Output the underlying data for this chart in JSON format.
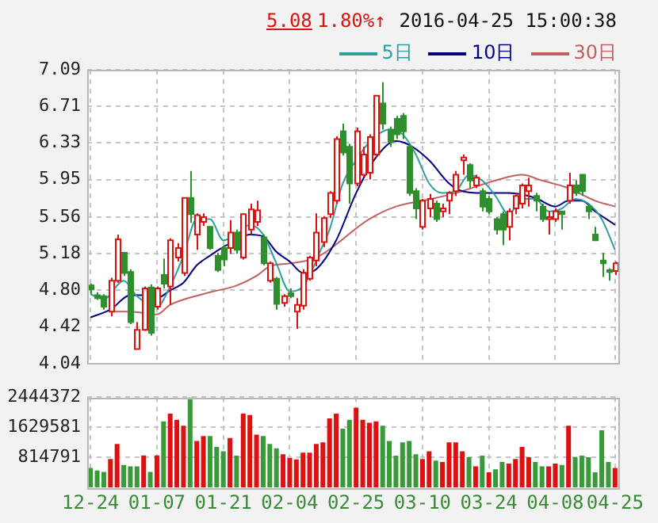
{
  "chart_data": [
    {
      "type": "candlestick",
      "annotations": [
        "5.08",
        "1.80%↑",
        "2016-04-25 15:00:38"
      ],
      "categories": [
        null,
        null,
        null,
        null,
        null,
        null,
        null,
        null,
        null,
        null,
        null,
        null,
        null,
        null,
        null,
        null,
        null,
        null,
        null,
        null,
        null,
        null,
        null,
        null,
        null,
        null,
        null,
        null,
        null,
        null,
        null,
        null,
        null,
        null,
        null,
        null,
        null,
        null,
        null,
        null,
        null,
        null,
        null,
        null,
        null,
        null,
        null,
        null,
        null,
        null,
        null,
        null,
        null,
        null,
        null,
        null,
        null,
        null,
        null,
        null,
        null,
        null,
        null,
        null,
        null,
        null,
        null,
        null,
        null,
        null,
        null,
        null,
        null,
        null,
        null,
        null,
        null,
        null,
        null,
        null
      ],
      "ohlc": [
        [
          4.85,
          4.87,
          4.76,
          4.81
        ],
        [
          4.75,
          4.78,
          4.7,
          4.72
        ],
        [
          4.74,
          4.76,
          4.6,
          4.63
        ],
        [
          4.58,
          4.93,
          4.53,
          4.9
        ],
        [
          4.9,
          5.38,
          4.88,
          5.33
        ],
        [
          5.19,
          5.2,
          4.95,
          4.98
        ],
        [
          4.99,
          5.02,
          4.45,
          4.47
        ],
        [
          4.19,
          4.47,
          4.19,
          4.39
        ],
        [
          4.39,
          4.84,
          4.38,
          4.82
        ],
        [
          4.83,
          4.86,
          4.33,
          4.36
        ],
        [
          4.63,
          4.84,
          4.6,
          4.82
        ],
        [
          4.96,
          5.13,
          4.82,
          4.87
        ],
        [
          4.84,
          5.34,
          4.65,
          5.32
        ],
        [
          5.14,
          5.29,
          5.1,
          5.24
        ],
        [
          4.98,
          5.76,
          4.95,
          5.76
        ],
        [
          5.76,
          6.04,
          5.5,
          5.59
        ],
        [
          5.38,
          5.6,
          5.22,
          5.58
        ],
        [
          5.51,
          5.6,
          5.47,
          5.56
        ],
        [
          5.46,
          5.47,
          5.22,
          5.24
        ],
        [
          5.16,
          5.19,
          4.99,
          5.01
        ],
        [
          5.24,
          5.27,
          5.05,
          5.12
        ],
        [
          5.24,
          5.53,
          5.18,
          5.4
        ],
        [
          5.4,
          5.43,
          5.18,
          5.22
        ],
        [
          5.14,
          5.6,
          5.12,
          5.59
        ],
        [
          5.43,
          5.7,
          5.38,
          5.64
        ],
        [
          5.51,
          5.73,
          5.47,
          5.63
        ],
        [
          5.35,
          5.38,
          5.06,
          5.08
        ],
        [
          4.9,
          5.1,
          4.88,
          5.08
        ],
        [
          4.92,
          4.94,
          4.6,
          4.66
        ],
        [
          4.67,
          4.76,
          4.63,
          4.74
        ],
        [
          4.77,
          4.82,
          4.72,
          4.74
        ],
        [
          4.58,
          4.72,
          4.4,
          4.65
        ],
        [
          4.64,
          5.02,
          4.6,
          4.98
        ],
        [
          4.92,
          5.16,
          4.9,
          5.14
        ],
        [
          5.11,
          5.6,
          5.05,
          5.4
        ],
        [
          5.3,
          5.57,
          5.25,
          5.55
        ],
        [
          5.59,
          5.83,
          5.55,
          5.81
        ],
        [
          5.73,
          6.4,
          5.7,
          6.37
        ],
        [
          6.45,
          6.53,
          6.2,
          6.23
        ],
        [
          6.29,
          6.32,
          5.7,
          5.91
        ],
        [
          5.91,
          6.49,
          5.88,
          6.45
        ],
        [
          6.0,
          6.29,
          5.98,
          6.21
        ],
        [
          6.02,
          6.42,
          5.95,
          6.39
        ],
        [
          6.21,
          6.82,
          6.18,
          6.82
        ],
        [
          6.74,
          6.96,
          6.47,
          6.53
        ],
        [
          6.47,
          6.5,
          6.29,
          6.34
        ],
        [
          6.58,
          6.61,
          6.37,
          6.42
        ],
        [
          6.61,
          6.64,
          6.37,
          6.45
        ],
        [
          6.29,
          6.32,
          5.78,
          5.81
        ],
        [
          5.83,
          5.86,
          5.54,
          5.65
        ],
        [
          5.46,
          5.75,
          5.43,
          5.73
        ],
        [
          5.65,
          5.8,
          5.56,
          5.75
        ],
        [
          5.7,
          5.73,
          5.51,
          5.54
        ],
        [
          5.62,
          5.7,
          5.56,
          5.65
        ],
        [
          5.73,
          5.83,
          5.59,
          5.81
        ],
        [
          5.83,
          6.04,
          5.78,
          6.0
        ],
        [
          6.15,
          6.21,
          6.0,
          6.18
        ],
        [
          6.1,
          6.12,
          5.86,
          5.94
        ],
        [
          5.89,
          6.0,
          5.86,
          5.97
        ],
        [
          5.83,
          5.86,
          5.62,
          5.67
        ],
        [
          5.75,
          5.78,
          5.59,
          5.62
        ],
        [
          5.54,
          5.56,
          5.38,
          5.43
        ],
        [
          5.59,
          5.62,
          5.27,
          5.43
        ],
        [
          5.46,
          5.65,
          5.32,
          5.62
        ],
        [
          5.65,
          5.81,
          5.59,
          5.78
        ],
        [
          5.7,
          5.91,
          5.65,
          5.89
        ],
        [
          5.83,
          5.97,
          5.67,
          5.89
        ],
        [
          5.78,
          5.81,
          5.62,
          5.73
        ],
        [
          5.67,
          5.7,
          5.51,
          5.54
        ],
        [
          5.54,
          5.62,
          5.38,
          5.56
        ],
        [
          5.54,
          5.65,
          5.51,
          5.62
        ],
        [
          5.62,
          5.62,
          5.43,
          5.59
        ],
        [
          5.73,
          6.02,
          5.7,
          5.89
        ],
        [
          5.89,
          5.94,
          5.78,
          5.81
        ],
        [
          6.0,
          6.0,
          5.78,
          5.83
        ],
        [
          5.67,
          5.7,
          5.54,
          5.62
        ],
        [
          5.38,
          5.46,
          5.32,
          5.32
        ],
        [
          5.11,
          5.19,
          4.94,
          5.08
        ],
        [
          5.01,
          5.03,
          4.9,
          4.99
        ],
        [
          5.0,
          5.1,
          4.96,
          5.08
        ]
      ],
      "series": [
        {
          "type": "line",
          "name": "5日",
          "color": "#2e9e9e",
          "values": [
            4.76,
            null,
            4.71,
            null,
            null,
            4.9,
            null,
            4.74,
            null,
            null,
            4.63,
            null,
            4.84,
            null,
            5.16,
            null,
            5.54,
            null,
            5.54,
            null,
            5.32,
            null,
            5.38,
            null,
            5.48,
            null,
            5.38,
            null,
            5.08,
            null,
            4.79,
            null,
            4.84,
            null,
            null,
            5.27,
            5.43,
            null,
            5.91,
            null,
            6.15,
            null,
            6.34,
            null,
            null,
            6.47,
            null,
            6.42,
            null,
            6.21,
            null,
            5.91,
            null,
            5.81,
            null,
            5.83,
            null,
            6.0,
            null,
            5.94,
            null,
            5.78,
            null,
            5.59,
            null,
            5.75,
            null,
            5.75,
            null,
            5.62,
            null,
            5.65,
            null,
            5.75,
            null,
            5.7,
            null,
            5.54,
            null,
            5.22
          ]
        },
        {
          "type": "line",
          "name": "10日",
          "color": "#000080",
          "values": [
            4.52,
            null,
            null,
            4.6,
            null,
            null,
            4.75,
            null,
            4.75,
            null,
            4.72,
            null,
            4.8,
            null,
            4.88,
            null,
            5.06,
            null,
            5.16,
            null,
            5.25,
            null,
            5.32,
            null,
            5.38,
            null,
            5.36,
            null,
            5.2,
            null,
            5.1,
            null,
            4.98,
            null,
            5.02,
            null,
            null,
            5.32,
            null,
            null,
            5.81,
            null,
            null,
            6.18,
            null,
            null,
            6.35,
            null,
            6.31,
            null,
            null,
            6.15,
            null,
            null,
            5.91,
            null,
            5.83,
            null,
            null,
            5.81,
            null,
            null,
            null,
            5.81,
            null,
            null,
            null,
            5.76,
            null,
            null,
            5.67,
            null,
            5.73,
            null,
            5.73,
            null,
            5.62,
            null,
            null,
            5.48
          ]
        },
        {
          "type": "line",
          "name": "30日",
          "color": "#c06060",
          "values": [
            null,
            null,
            null,
            4.58,
            null,
            null,
            4.58,
            null,
            null,
            null,
            4.55,
            null,
            4.65,
            null,
            null,
            null,
            null,
            null,
            4.78,
            null,
            null,
            null,
            4.85,
            null,
            null,
            4.95,
            null,
            5.05,
            null,
            null,
            5.08,
            null,
            null,
            null,
            5.14,
            null,
            null,
            null,
            null,
            null,
            null,
            null,
            5.54,
            null,
            null,
            null,
            5.67,
            null,
            null,
            null,
            5.73,
            null,
            null,
            null,
            null,
            5.81,
            null,
            null,
            null,
            null,
            null,
            5.94,
            null,
            null,
            null,
            6.0,
            null,
            null,
            5.94,
            null,
            null,
            null,
            5.86,
            null,
            null,
            null,
            5.73,
            null,
            null,
            5.67
          ]
        }
      ],
      "ylim": [
        4.04,
        7.09
      ],
      "yticks": [
        4.04,
        4.42,
        {
          "value": 4.8,
          "label": "4.80"
        },
        5.18,
        5.56,
        5.95,
        6.33,
        6.71,
        7.09
      ],
      "grid": true,
      "legend": "top right",
      "tick_labels": "y"
    },
    {
      "type": "bar",
      "categories": [
        "12-24",
        null,
        null,
        null,
        null,
        null,
        null,
        null,
        null,
        null,
        "01-07",
        null,
        null,
        null,
        null,
        null,
        null,
        null,
        null,
        null,
        "01-21",
        null,
        null,
        null,
        null,
        null,
        null,
        null,
        null,
        null,
        "02-04",
        null,
        null,
        null,
        null,
        null,
        null,
        null,
        null,
        null,
        "02-25",
        null,
        null,
        null,
        null,
        null,
        null,
        null,
        null,
        null,
        "03-10",
        null,
        null,
        null,
        null,
        null,
        null,
        null,
        null,
        null,
        "03-24",
        null,
        null,
        null,
        null,
        null,
        null,
        null,
        null,
        null,
        "04-08",
        null,
        null,
        null,
        null,
        null,
        null,
        null,
        null,
        "04-25"
      ],
      "values": [
        530000,
        460000,
        420000,
        770000,
        1180000,
        610000,
        570000,
        570000,
        870000,
        420000,
        870000,
        1790000,
        2000000,
        1830000,
        1670000,
        2440000,
        1260000,
        1390000,
        1390000,
        1100000,
        980000,
        1340000,
        860000,
        2000000,
        1960000,
        1430000,
        1390000,
        1180000,
        1060000,
        900000,
        800000,
        760000,
        940000,
        940000,
        1180000,
        1220000,
        1870000,
        2000000,
        1590000,
        1830000,
        2160000,
        1830000,
        1750000,
        1790000,
        1670000,
        1260000,
        860000,
        1220000,
        1260000,
        900000,
        770000,
        980000,
        730000,
        690000,
        1220000,
        1220000,
        980000,
        820000,
        570000,
        860000,
        410000,
        490000,
        690000,
        650000,
        770000,
        1100000,
        820000,
        690000,
        570000,
        570000,
        650000,
        610000,
        1670000,
        820000,
        860000,
        820000,
        410000,
        1550000,
        690000,
        530000
      ],
      "colors": [
        "#3a9a3a",
        "#3a9a3a",
        "#3a9a3a",
        "#dd1111",
        "#dd1111",
        "#3a9a3a",
        "#3a9a3a",
        "#3a9a3a",
        "#dd1111",
        "#3a9a3a",
        "#dd1111",
        "#3a9a3a",
        "#dd1111",
        "#dd1111",
        "#dd1111",
        "#3a9a3a",
        "#dd1111",
        "#dd1111",
        "#3a9a3a",
        "#3a9a3a",
        "#3a9a3a",
        "#dd1111",
        "#3a9a3a",
        "#dd1111",
        "#dd1111",
        "#dd1111",
        "#3a9a3a",
        "#3a9a3a",
        "#3a9a3a",
        "#dd1111",
        "#dd1111",
        "#dd1111",
        "#dd1111",
        "#dd1111",
        "#dd1111",
        "#dd1111",
        "#dd1111",
        "#dd1111",
        "#3a9a3a",
        "#3a9a3a",
        "#dd1111",
        "#dd1111",
        "#dd1111",
        "#dd1111",
        "#3a9a3a",
        "#3a9a3a",
        "#3a9a3a",
        "#3a9a3a",
        "#3a9a3a",
        "#3a9a3a",
        "#dd1111",
        "#dd1111",
        "#3a9a3a",
        "#dd1111",
        "#dd1111",
        "#dd1111",
        "#dd1111",
        "#3a9a3a",
        "#dd1111",
        "#3a9a3a",
        "#dd1111",
        "#3a9a3a",
        "#3a9a3a",
        "#dd1111",
        "#dd1111",
        "#dd1111",
        "#dd1111",
        "#3a9a3a",
        "#3a9a3a",
        "#dd1111",
        "#dd1111",
        "#3a9a3a",
        "#dd1111",
        "#3a9a3a",
        "#3a9a3a",
        "#3a9a3a",
        "#3a9a3a",
        "#3a9a3a",
        "#3a9a3a",
        "#dd1111"
      ],
      "ylim": [
        0,
        2444372
      ],
      "yticks": [
        814791,
        1629581,
        2444372
      ],
      "grid": true
    }
  ]
}
